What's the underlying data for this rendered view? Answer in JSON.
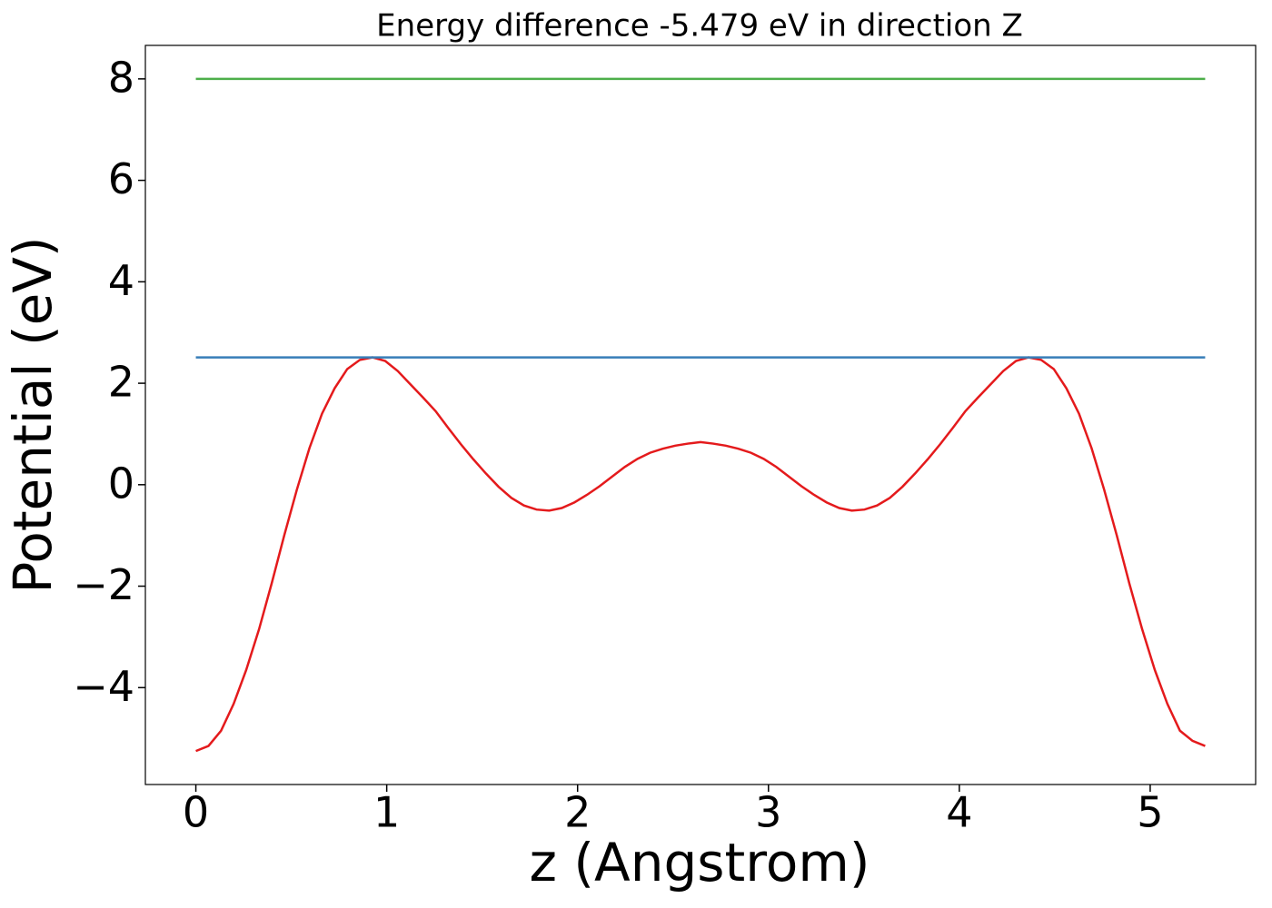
{
  "chart_data": {
    "type": "line",
    "title": "Energy difference -5.479 eV in direction Z",
    "x_label": "z (Angstrom)",
    "y_label": "Potential (eV)",
    "xlim": [
      -0.2645,
      5.5525
    ],
    "ylim": [
      -5.91,
      8.66
    ],
    "xticks": [
      0,
      1,
      2,
      3,
      4,
      5
    ],
    "yticks": [
      {
        "value": -4,
        "label": "−4"
      },
      {
        "value": -2,
        "label": "−2"
      },
      0,
      2,
      4,
      6,
      8
    ],
    "series": [
      {
        "color": "#e41a1c",
        "x": [
          0,
          0.066,
          0.132,
          0.198,
          0.264,
          0.331,
          0.397,
          0.463,
          0.529,
          0.595,
          0.661,
          0.727,
          0.793,
          0.859,
          0.925,
          0.992,
          1.058,
          1.124,
          1.19,
          1.256,
          1.322,
          1.388,
          1.454,
          1.52,
          1.586,
          1.653,
          1.719,
          1.785,
          1.851,
          1.917,
          1.983,
          2.049,
          2.115,
          2.181,
          2.247,
          2.314,
          2.38,
          2.446,
          2.512,
          2.578,
          2.644,
          2.71,
          2.776,
          2.842,
          2.908,
          2.975,
          3.041,
          3.107,
          3.173,
          3.239,
          3.305,
          3.371,
          3.437,
          3.503,
          3.569,
          3.636,
          3.702,
          3.768,
          3.834,
          3.9,
          3.966,
          4.032,
          4.098,
          4.164,
          4.23,
          4.297,
          4.363,
          4.429,
          4.495,
          4.561,
          4.627,
          4.693,
          4.759,
          4.825,
          4.891,
          4.958,
          5.024,
          5.09,
          5.156,
          5.222,
          5.288
        ],
        "values": [
          -5.25,
          -5.15,
          -4.85,
          -4.32,
          -3.65,
          -2.85,
          -1.95,
          -1.0,
          -0.1,
          0.72,
          1.4,
          1.9,
          2.28,
          2.46,
          2.51,
          2.44,
          2.24,
          1.98,
          1.72,
          1.45,
          1.12,
          0.8,
          0.5,
          0.22,
          -0.04,
          -0.26,
          -0.41,
          -0.49,
          -0.51,
          -0.46,
          -0.35,
          -0.2,
          -0.03,
          0.16,
          0.35,
          0.51,
          0.63,
          0.71,
          0.77,
          0.81,
          0.84,
          0.81,
          0.77,
          0.71,
          0.63,
          0.51,
          0.35,
          0.16,
          -0.03,
          -0.2,
          -0.35,
          -0.46,
          -0.51,
          -0.49,
          -0.41,
          -0.26,
          -0.04,
          0.22,
          0.5,
          0.8,
          1.12,
          1.45,
          1.72,
          1.98,
          2.24,
          2.44,
          2.51,
          2.46,
          2.28,
          1.9,
          1.4,
          0.72,
          -0.1,
          -1.0,
          -1.95,
          -2.85,
          -3.65,
          -4.32,
          -4.85,
          -5.05,
          -5.15
        ]
      },
      {
        "color": "#377eb8",
        "x": [
          0,
          5.288
        ],
        "values": [
          2.51,
          2.51
        ]
      },
      {
        "color": "#4daf4a",
        "x": [
          0,
          5.288
        ],
        "values": [
          8,
          8
        ]
      }
    ]
  }
}
